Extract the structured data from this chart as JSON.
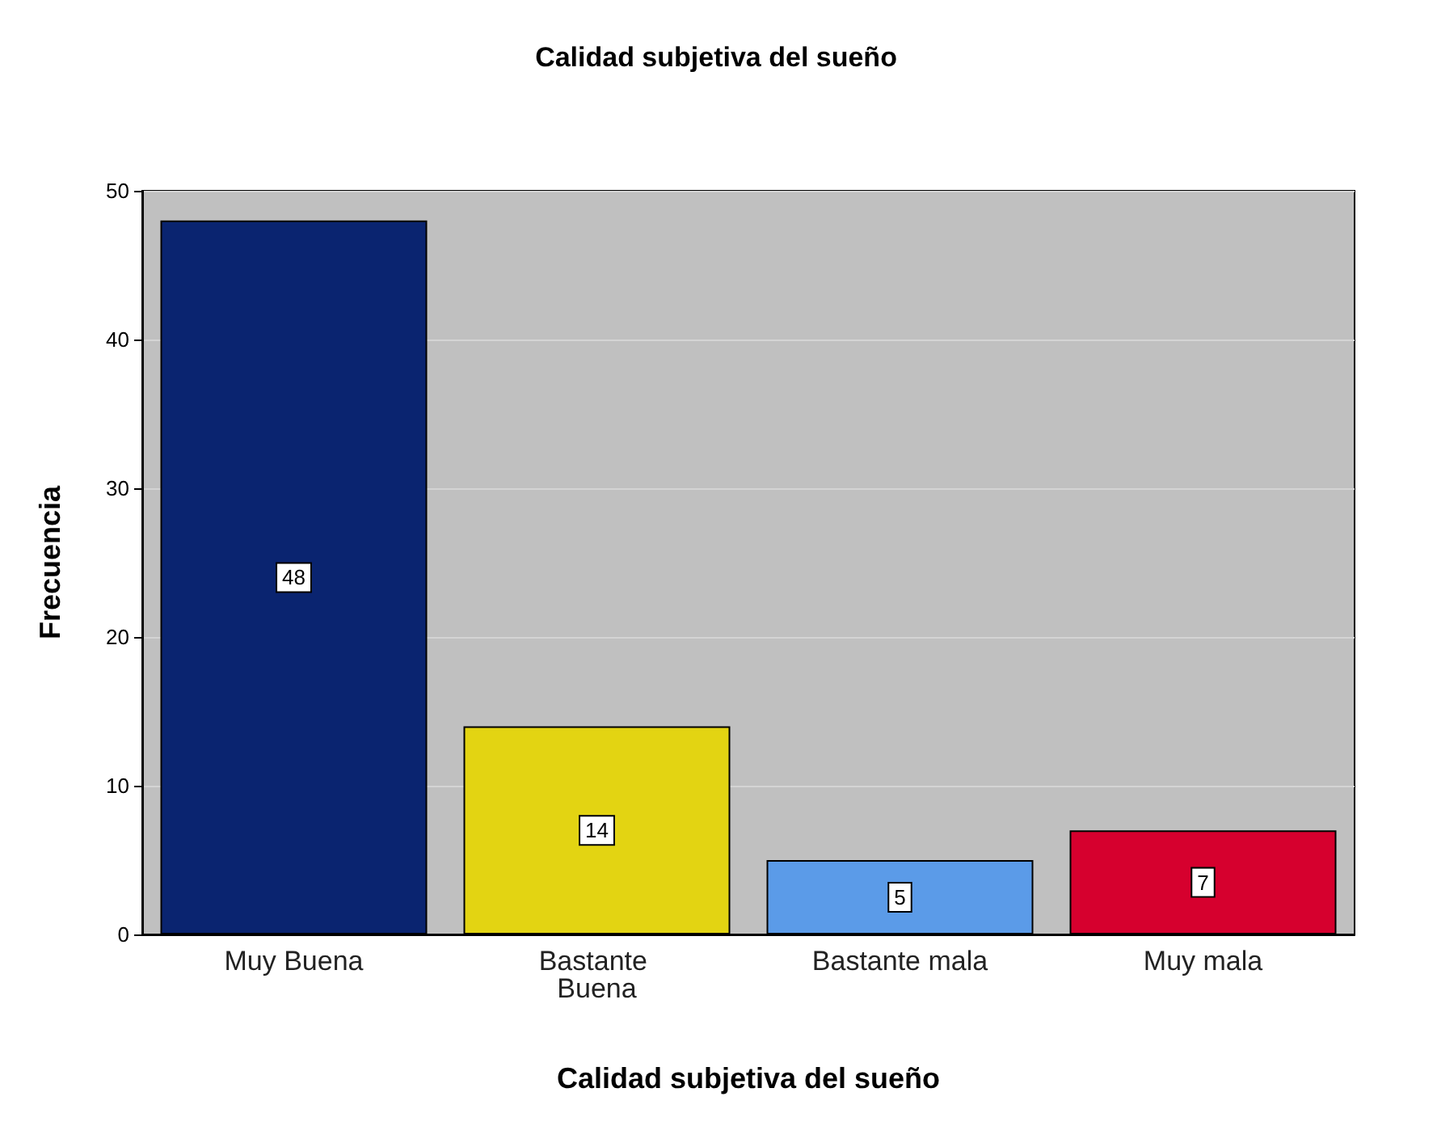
{
  "chart_data": {
    "type": "bar",
    "title": "Calidad subjetiva del sueño",
    "xlabel": "Calidad subjetiva del sueño",
    "ylabel": "Frecuencia",
    "categories": [
      "Muy Buena",
      "Bastante Buena",
      "Bastante mala",
      "Muy mala"
    ],
    "values": [
      48,
      14,
      5,
      7
    ],
    "colors": [
      "#0a2470",
      "#e3d412",
      "#5b9be8",
      "#d6002e"
    ],
    "ylim": [
      0,
      50
    ],
    "yticks": [
      0,
      10,
      20,
      30,
      40,
      50
    ],
    "grid": "y",
    "data_labels": true
  }
}
